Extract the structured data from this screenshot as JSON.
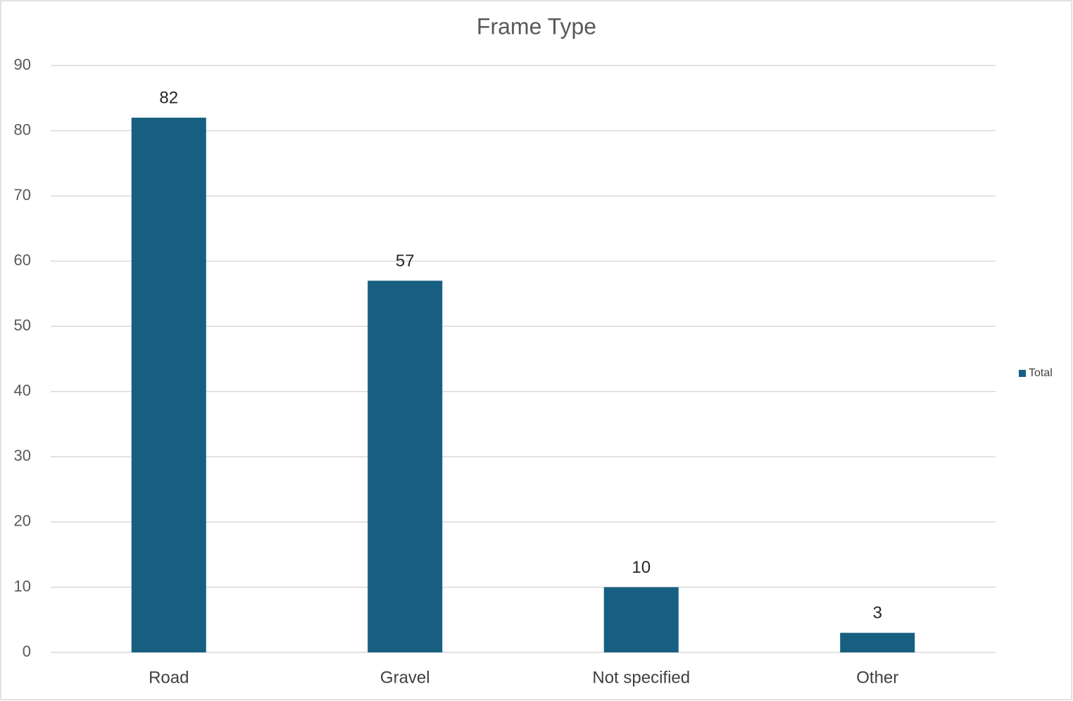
{
  "chart_data": {
    "type": "bar",
    "title": "Frame Type",
    "categories": [
      "Road",
      "Gravel",
      "Not specified",
      "Other"
    ],
    "series": [
      {
        "name": "Total",
        "color": "#175f80",
        "values": [
          82,
          57,
          10,
          3
        ]
      }
    ],
    "ylim": [
      0,
      90
    ],
    "yticks": [
      0,
      10,
      20,
      30,
      40,
      50,
      60,
      70,
      80,
      90
    ],
    "grid": true,
    "legend": "right",
    "data_labels": true
  }
}
